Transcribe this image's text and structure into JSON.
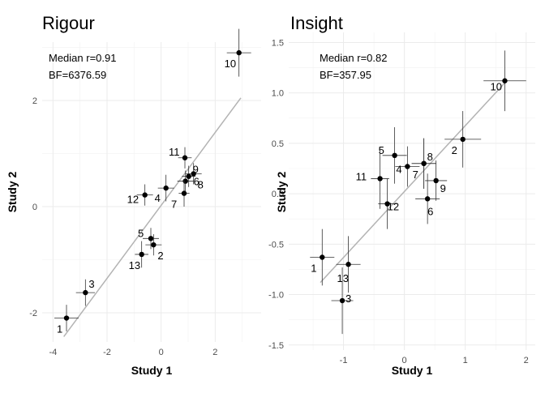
{
  "chart_data": [
    {
      "type": "scatter",
      "title": "Rigour",
      "xlabel": "Study 1",
      "ylabel": "Study 2",
      "xlim": [
        -4.4,
        3.7
      ],
      "ylim": [
        -2.55,
        3.1
      ],
      "xticks": [
        -4,
        -2,
        0,
        2
      ],
      "yticks": [
        -2,
        0,
        2
      ],
      "grid": true,
      "annotations": [
        "Median r=0.91",
        "BF=6376.59"
      ],
      "fit_line": {
        "x": [
          -3.6,
          2.95
        ],
        "y": [
          -2.45,
          2.05
        ]
      },
      "points": [
        {
          "label": "1",
          "x": -3.5,
          "y": -2.1,
          "xerr": 0.45,
          "yerr": 0.25
        },
        {
          "label": "2",
          "x": -0.28,
          "y": -0.72,
          "xerr": 0.3,
          "yerr": 0.2
        },
        {
          "label": "3",
          "x": -2.8,
          "y": -1.62,
          "xerr": 0.35,
          "yerr": 0.25
        },
        {
          "label": "4",
          "x": 0.18,
          "y": 0.35,
          "xerr": 0.3,
          "yerr": 0.25
        },
        {
          "label": "5",
          "x": -0.38,
          "y": -0.6,
          "xerr": 0.3,
          "yerr": 0.2
        },
        {
          "label": "6",
          "x": 0.9,
          "y": 0.48,
          "xerr": 0.3,
          "yerr": 0.2
        },
        {
          "label": "7",
          "x": 0.85,
          "y": 0.25,
          "xerr": 0.2,
          "yerr": 0.25
        },
        {
          "label": "8",
          "x": 1.2,
          "y": 0.62,
          "xerr": 0.3,
          "yerr": 0.2
        },
        {
          "label": "9",
          "x": 1.02,
          "y": 0.57,
          "xerr": 0.25,
          "yerr": 0.2
        },
        {
          "label": "10",
          "x": 2.88,
          "y": 2.9,
          "xerr": 0.45,
          "yerr": 0.45
        },
        {
          "label": "11",
          "x": 0.88,
          "y": 0.92,
          "xerr": 0.25,
          "yerr": 0.2
        },
        {
          "label": "12",
          "x": -0.6,
          "y": 0.22,
          "xerr": 0.3,
          "yerr": 0.2
        },
        {
          "label": "13",
          "x": -0.72,
          "y": -0.9,
          "xerr": 0.25,
          "yerr": 0.25
        }
      ]
    },
    {
      "type": "scatter",
      "title": "Insight",
      "xlabel": "Study 1",
      "ylabel": "Study 2",
      "xlim": [
        -1.9,
        2.15
      ],
      "ylim": [
        -1.55,
        1.6
      ],
      "xticks": [
        -1,
        0,
        1,
        2
      ],
      "yticks": [
        -1.5,
        -1.0,
        -0.5,
        0.0,
        0.5,
        1.0,
        1.5
      ],
      "grid": true,
      "annotations": [
        "Median r=0.82",
        "BF=357.95"
      ],
      "fit_line": {
        "x": [
          -1.38,
          1.65
        ],
        "y": [
          -0.88,
          1.1
        ]
      },
      "points": [
        {
          "label": "1",
          "x": -1.35,
          "y": -0.63,
          "xerr": 0.2,
          "yerr": 0.28
        },
        {
          "label": "2",
          "x": 0.96,
          "y": 0.54,
          "xerr": 0.3,
          "yerr": 0.28
        },
        {
          "label": "3",
          "x": -1.02,
          "y": -1.06,
          "xerr": 0.18,
          "yerr": 0.33
        },
        {
          "label": "4",
          "x": 0.05,
          "y": 0.27,
          "xerr": 0.2,
          "yerr": 0.2
        },
        {
          "label": "5",
          "x": -0.16,
          "y": 0.38,
          "xerr": 0.2,
          "yerr": 0.28
        },
        {
          "label": "6",
          "x": 0.38,
          "y": -0.05,
          "xerr": 0.2,
          "yerr": 0.25
        },
        {
          "label": "7",
          "x": 0.32,
          "y": 0.3,
          "xerr": 0.2,
          "yerr": 0.25
        },
        {
          "label": "8",
          "x": 0.32,
          "y": 0.3,
          "xerr": 0.2,
          "yerr": 0.25
        },
        {
          "label": "9",
          "x": 0.52,
          "y": 0.13,
          "xerr": 0.18,
          "yerr": 0.2
        },
        {
          "label": "10",
          "x": 1.65,
          "y": 1.12,
          "xerr": 0.35,
          "yerr": 0.3
        },
        {
          "label": "11",
          "x": -0.4,
          "y": 0.15,
          "xerr": 0.15,
          "yerr": 0.3
        },
        {
          "label": "12",
          "x": -0.28,
          "y": -0.1,
          "xerr": 0.15,
          "yerr": 0.25
        },
        {
          "label": "13",
          "x": -0.92,
          "y": -0.7,
          "xerr": 0.2,
          "yerr": 0.28
        }
      ]
    }
  ]
}
